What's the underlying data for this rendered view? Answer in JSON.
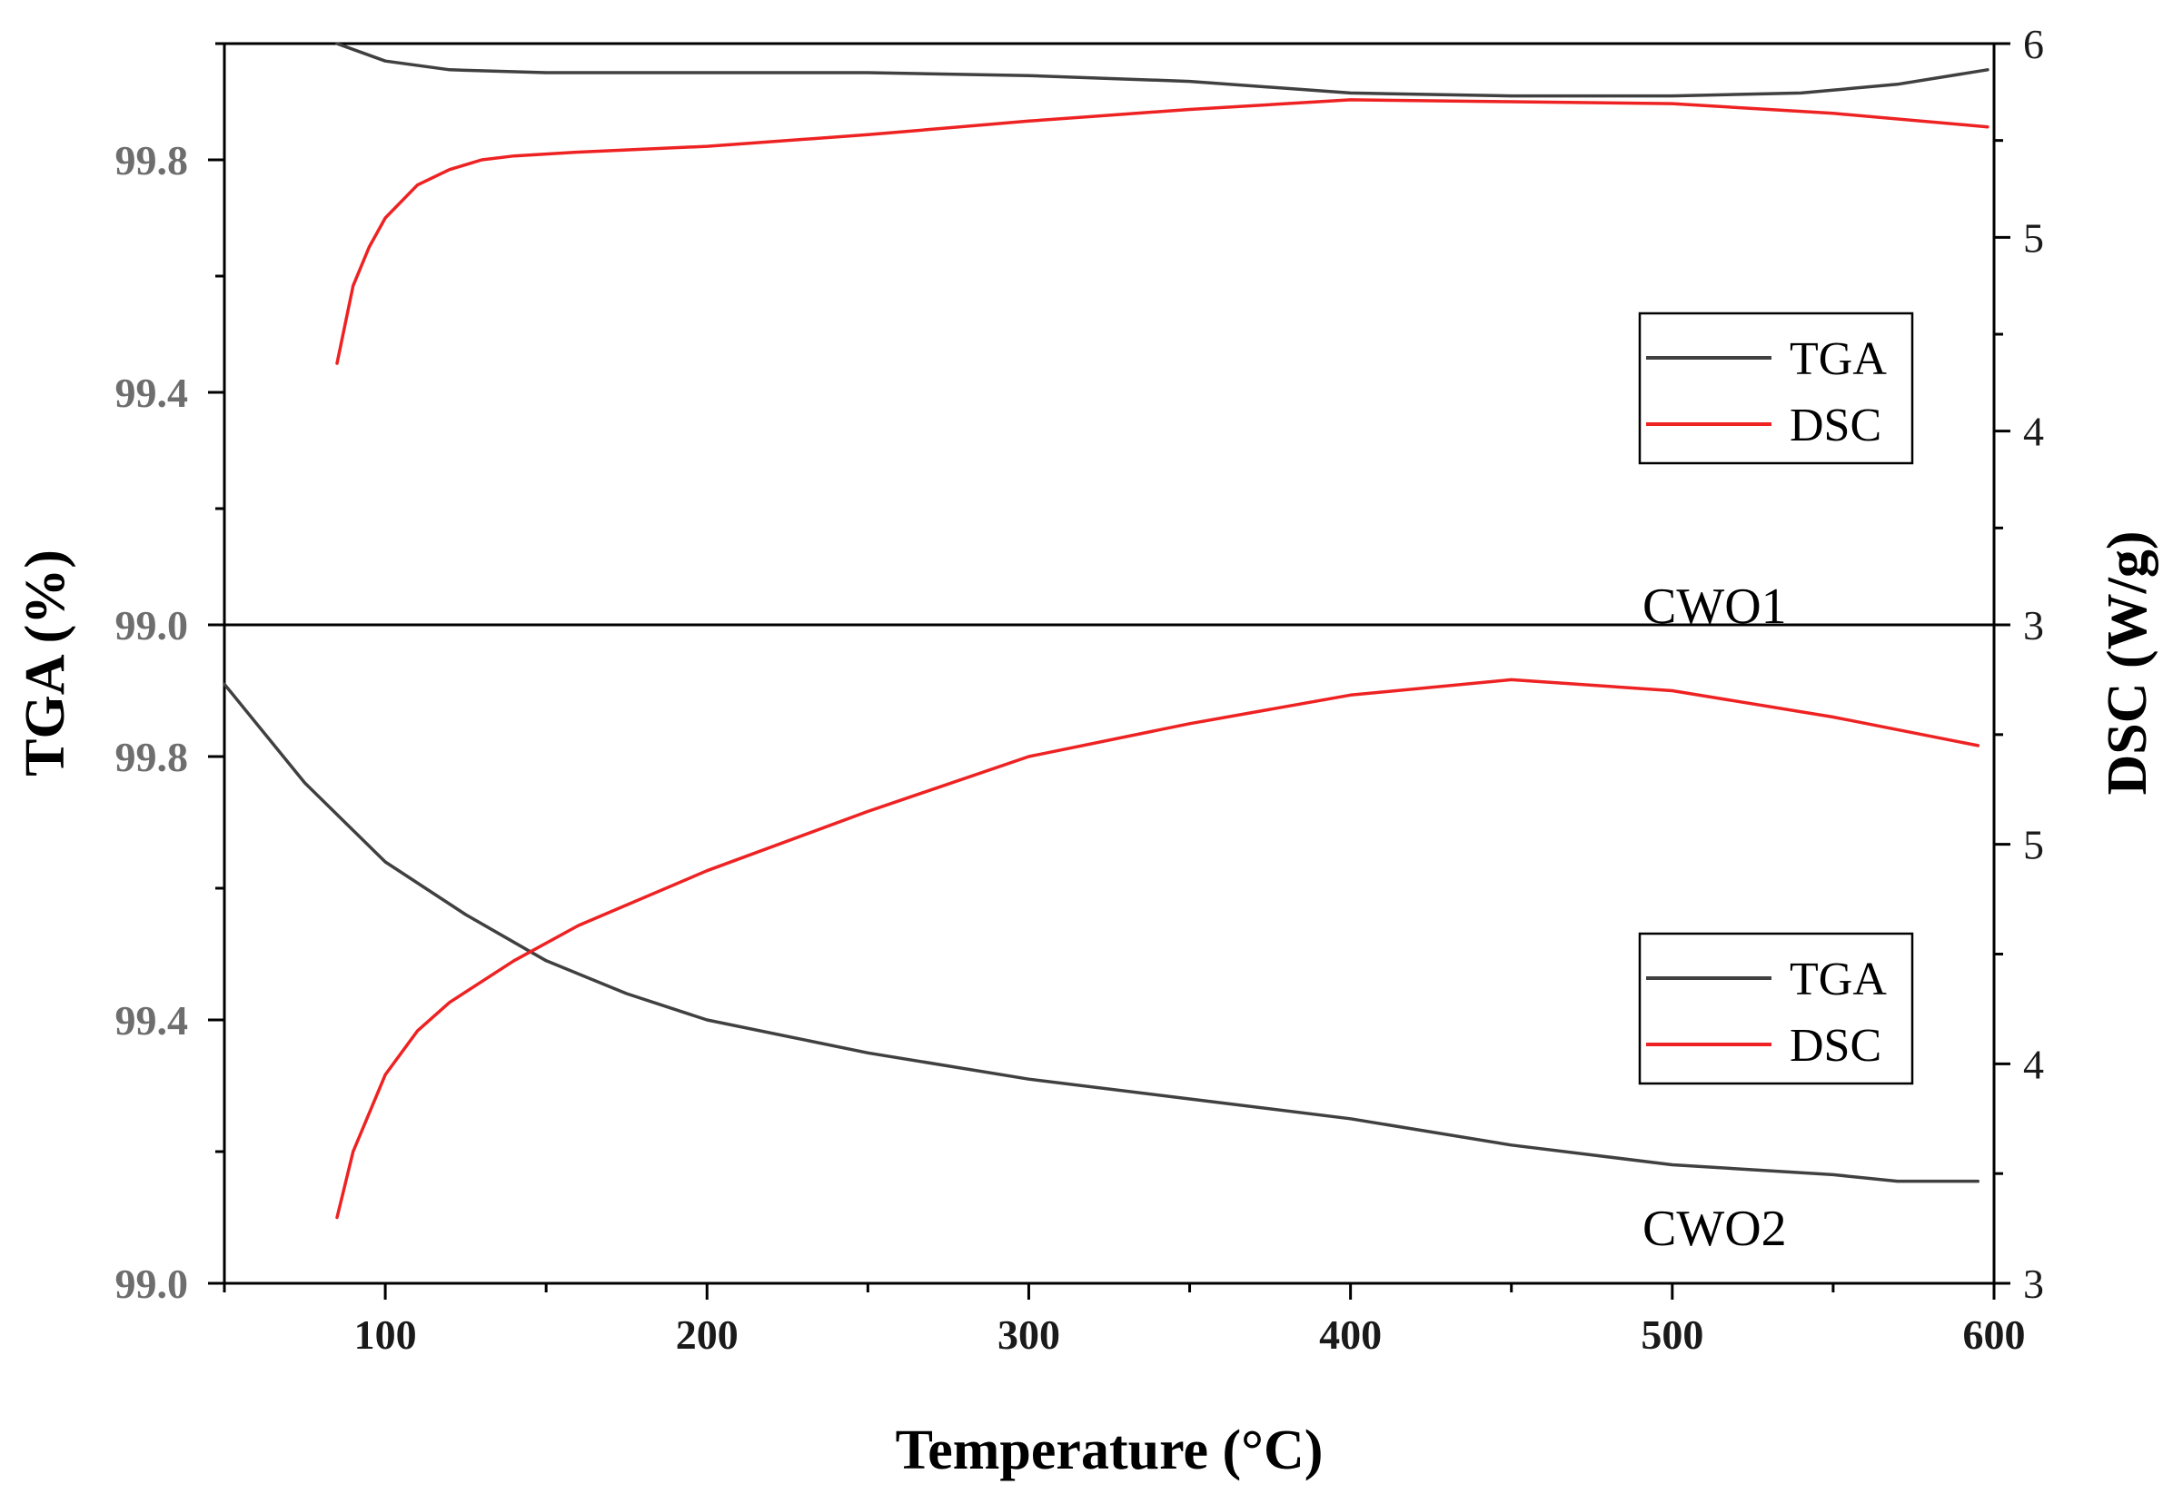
{
  "colors": {
    "tga": "#404040",
    "dsc": "#ee2222",
    "axis": "#000000"
  },
  "chart_data": {
    "type": "line",
    "title": "",
    "xlabel": "Temperature (°C)",
    "ylabel_left": "TGA (%)",
    "ylabel_right": "DSC (W/g)",
    "xlim": [
      50,
      600
    ],
    "x_ticks": [
      "100",
      "200",
      "300",
      "400",
      "500",
      "600"
    ],
    "x_tick_values": [
      100,
      200,
      300,
      400,
      500,
      600
    ],
    "legend_position": "center-right",
    "panels": [
      {
        "label": "CWO1",
        "position": "top",
        "tga_ylim": [
          99.0,
          100.0
        ],
        "dsc_ylim": [
          3,
          6
        ],
        "left_ticks": [
          "99.0",
          "99.4",
          "99.8"
        ],
        "left_tick_values": [
          99.0,
          99.4,
          99.8
        ],
        "right_ticks": [
          "3",
          "4",
          "5",
          "6"
        ],
        "right_tick_values": [
          3,
          4,
          5,
          6
        ],
        "legend": [
          "TGA",
          "DSC"
        ],
        "series": [
          {
            "name": "TGA",
            "x": [
              85,
              100,
              120,
              150,
              200,
              250,
              300,
              350,
              400,
              450,
              500,
              540,
              570,
              598
            ],
            "values": [
              100.0,
              99.97,
              99.955,
              99.95,
              99.95,
              99.95,
              99.945,
              99.935,
              99.915,
              99.91,
              99.91,
              99.915,
              99.93,
              99.955
            ]
          },
          {
            "name": "DSC",
            "x": [
              85,
              90,
              95,
              100,
              110,
              120,
              130,
              140,
              160,
              200,
              250,
              300,
              350,
              400,
              450,
              500,
              550,
              598
            ],
            "values": [
              4.35,
              4.75,
              4.95,
              5.1,
              5.27,
              5.35,
              5.4,
              5.42,
              5.44,
              5.47,
              5.53,
              5.6,
              5.66,
              5.71,
              5.7,
              5.69,
              5.64,
              5.57
            ]
          }
        ]
      },
      {
        "label": "CWO2",
        "position": "bottom",
        "tga_ylim": [
          99.0,
          100.0
        ],
        "dsc_ylim": [
          3,
          6
        ],
        "left_ticks": [
          "99.0",
          "99.4",
          "99.8"
        ],
        "left_tick_values": [
          99.0,
          99.4,
          99.8
        ],
        "right_ticks": [
          "3",
          "4",
          "5"
        ],
        "right_tick_values": [
          3,
          4,
          5
        ],
        "legend": [
          "TGA",
          "DSC"
        ],
        "series": [
          {
            "name": "TGA",
            "x": [
              50,
              75,
              100,
              125,
              150,
              175,
              200,
              250,
              300,
              350,
              400,
              450,
              500,
              550,
              570,
              595
            ],
            "values": [
              99.91,
              99.76,
              99.64,
              99.56,
              99.49,
              99.44,
              99.4,
              99.35,
              99.31,
              99.28,
              99.25,
              99.21,
              99.18,
              99.165,
              99.155,
              99.155
            ]
          },
          {
            "name": "DSC",
            "x": [
              85,
              90,
              100,
              110,
              120,
              140,
              160,
              200,
              250,
              300,
              350,
              400,
              450,
              500,
              550,
              595
            ],
            "values": [
              3.3,
              3.6,
              3.95,
              4.15,
              4.28,
              4.47,
              4.63,
              4.88,
              5.15,
              5.4,
              5.55,
              5.68,
              5.75,
              5.7,
              5.58,
              5.45
            ]
          }
        ]
      }
    ]
  }
}
